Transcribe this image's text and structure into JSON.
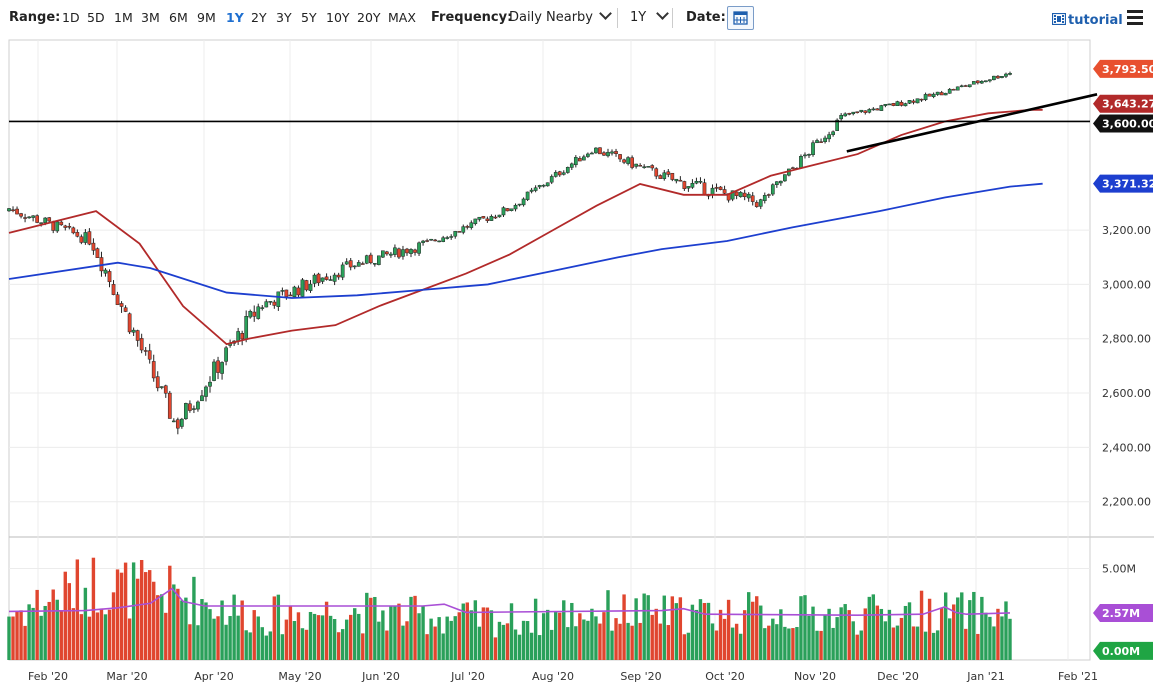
{
  "toolbar": {
    "range_label": "Range:",
    "ranges": [
      "1D",
      "5D",
      "1M",
      "3M",
      "6M",
      "9M",
      "1Y",
      "2Y",
      "3Y",
      "5Y",
      "10Y",
      "20Y",
      "MAX"
    ],
    "active_range": "1Y",
    "frequency_label": "Frequency:",
    "frequency_value": "Daily Nearby",
    "period_value": "1Y",
    "date_label": "Date:",
    "tutorial_label": "tutorial",
    "colors": {
      "active": "#1e6fd0",
      "link": "#1e5fae"
    }
  },
  "chart_data": [
    {
      "type": "candlestick",
      "panel": "price",
      "x_axis_ticks": [
        "Feb '20",
        "Mar '20",
        "Apr '20",
        "May '20",
        "Jun '20",
        "Jul '20",
        "Aug '20",
        "Sep '20",
        "Oct '20",
        "Nov '20",
        "Dec '20",
        "Jan '21",
        "Feb '21"
      ],
      "y_axis_ticks": [
        "2,200.00",
        "2,400.00",
        "2,600.00",
        "2,800.00",
        "3,000.00",
        "3,200.00",
        "3,600.00"
      ],
      "ylim": [
        2070,
        3900
      ],
      "grid": true,
      "series": [
        {
          "kind": "price",
          "color_up": "#2aa05a",
          "color_down": "#e0462f",
          "monthly_close": [
            3280,
            3160,
            2480,
            2920,
            3060,
            3150,
            3280,
            3500,
            3380,
            3300,
            3620,
            3690,
            3780
          ],
          "monthly_high": [
            3390,
            3400,
            2900,
            2960,
            3200,
            3230,
            3330,
            3590,
            3540,
            3660,
            3690,
            3760,
            3820
          ],
          "monthly_low": [
            3220,
            2850,
            2180,
            2440,
            2800,
            2940,
            3120,
            3300,
            3200,
            3220,
            3480,
            3610,
            3660
          ]
        },
        {
          "kind": "sma",
          "period": 50,
          "color": "#b22a2a",
          "x": [
            0,
            0.08,
            0.12,
            0.16,
            0.2,
            0.22,
            0.26,
            0.3,
            0.34,
            0.38,
            0.42,
            0.46,
            0.5,
            0.54,
            0.58,
            0.62,
            0.66,
            0.7,
            0.74,
            0.78,
            0.82,
            0.86,
            0.9,
            0.94,
            0.95
          ],
          "y": [
            3190,
            3270,
            3150,
            2920,
            2780,
            2800,
            2830,
            2850,
            2920,
            2980,
            3040,
            3110,
            3200,
            3290,
            3370,
            3330,
            3330,
            3400,
            3440,
            3480,
            3550,
            3600,
            3630,
            3643,
            3643
          ]
        },
        {
          "kind": "sma",
          "period": 200,
          "color": "#1d3fcf",
          "x": [
            0,
            0.1,
            0.13,
            0.2,
            0.26,
            0.32,
            0.38,
            0.44,
            0.5,
            0.56,
            0.6,
            0.66,
            0.72,
            0.8,
            0.86,
            0.92,
            0.95
          ],
          "y": [
            3020,
            3080,
            3060,
            2970,
            2950,
            2960,
            2980,
            3000,
            3050,
            3100,
            3130,
            3160,
            3210,
            3270,
            3320,
            3360,
            3371
          ]
        }
      ],
      "trendlines": [
        {
          "kind": "horizontal",
          "value": 3600,
          "color": "#000000"
        },
        {
          "kind": "rising",
          "from": [
            0.77,
            3490
          ],
          "to": [
            1.0,
            3700
          ],
          "color": "#000000"
        }
      ],
      "price_flags": [
        {
          "label": "3,793.50",
          "value": 3793.5,
          "color": "#e8502f"
        },
        {
          "label": "3,643.27",
          "value": 3643.27,
          "color": "#b22a2a"
        },
        {
          "label": "3,600.00",
          "value": 3600,
          "color": "#111111"
        },
        {
          "label": "3,371.32",
          "value": 3371.32,
          "color": "#1d3fcf"
        }
      ]
    },
    {
      "type": "bar",
      "panel": "volume",
      "y_axis_ticks": [
        "5.00M"
      ],
      "ylim": [
        0,
        6.5
      ],
      "series": [
        {
          "kind": "volume",
          "color_up": "#2aa05a",
          "color_down": "#e0462f",
          "monthly_avg": [
            2.5,
            4.2,
            3.6,
            2.4,
            2.7,
            2.4,
            2.2,
            2.7,
            2.5,
            2.6,
            2.4,
            2.7,
            2.5
          ]
        },
        {
          "kind": "volume_avg",
          "color": "#a94fd6",
          "x": [
            0,
            0.07,
            0.1,
            0.13,
            0.15,
            0.16,
            0.18,
            0.3,
            0.38,
            0.4,
            0.42,
            0.6,
            0.62,
            0.64,
            0.78,
            0.84,
            0.86,
            0.87,
            0.88,
            0.92
          ],
          "y": [
            2.65,
            2.7,
            2.85,
            3.1,
            3.9,
            3.2,
            2.95,
            2.95,
            2.95,
            3.05,
            2.6,
            2.7,
            2.8,
            2.5,
            2.45,
            2.5,
            2.9,
            2.6,
            2.5,
            2.57
          ]
        }
      ],
      "price_flags": [
        {
          "label": "2.57M",
          "value": 2.57,
          "color": "#a94fd6"
        },
        {
          "label": "0.00M",
          "value": 0,
          "color": "#1fa544"
        }
      ]
    }
  ]
}
